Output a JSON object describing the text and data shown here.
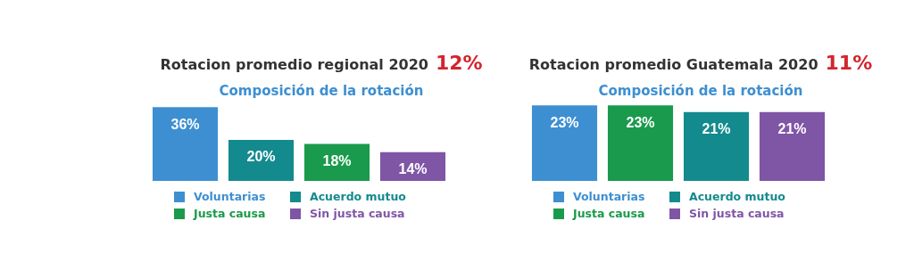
{
  "chart_data": [
    {
      "type": "bar",
      "stacked": true,
      "title": "Rotacion promedio regional 2020",
      "subtitle": "Composición de la rotación",
      "annotations": [
        "12%"
      ],
      "categories": [
        null,
        null,
        null,
        null
      ],
      "legend": "bottom",
      "series": [
        {
          "name": "Voluntarias",
          "color": "#3d8fd1",
          "values": [
            36,
            null,
            null,
            null
          ],
          "value_labels": [
            "36%",
            null,
            null,
            null
          ]
        },
        {
          "name": "Acuerdo mutuo",
          "color": "#138a8e",
          "values": [
            null,
            20,
            null,
            null
          ],
          "value_labels": [
            null,
            "20%",
            null,
            null
          ]
        },
        {
          "name": "Justa causa",
          "color": "#1a9a4c",
          "values": [
            null,
            null,
            18,
            null
          ],
          "value_labels": [
            null,
            null,
            "18%",
            null
          ]
        },
        {
          "name": "Sin justa causa",
          "color": "#7f55a6",
          "values": [
            null,
            null,
            null,
            14
          ],
          "value_labels": [
            null,
            null,
            null,
            "14%"
          ]
        }
      ]
    },
    {
      "type": "bar",
      "stacked": true,
      "title": "Rotacion promedio Guatemala 2020",
      "subtitle": "Composición de la rotación",
      "annotations": [
        "11%"
      ],
      "categories": [
        null,
        null,
        null,
        null
      ],
      "legend": "bottom",
      "series": [
        {
          "name": "Voluntarias",
          "color": "#3d8fd1",
          "values": [
            23,
            null,
            null,
            null
          ],
          "value_labels": [
            "23%",
            null,
            null,
            null
          ]
        },
        {
          "name": "Acuerdo mutuo",
          "color": "#138a8e",
          "values": [
            null,
            null,
            21,
            null
          ],
          "value_labels": [
            null,
            null,
            "21%",
            null
          ]
        },
        {
          "name": "Justa causa",
          "color": "#1a9a4c",
          "values": [
            null,
            23,
            null,
            null
          ],
          "value_labels": [
            null,
            "23%",
            null,
            null
          ]
        },
        {
          "name": "Sin justa causa",
          "color": "#7f55a6",
          "values": [
            null,
            null,
            null,
            21
          ],
          "value_labels": [
            null,
            null,
            null,
            "21%"
          ]
        }
      ]
    }
  ]
}
